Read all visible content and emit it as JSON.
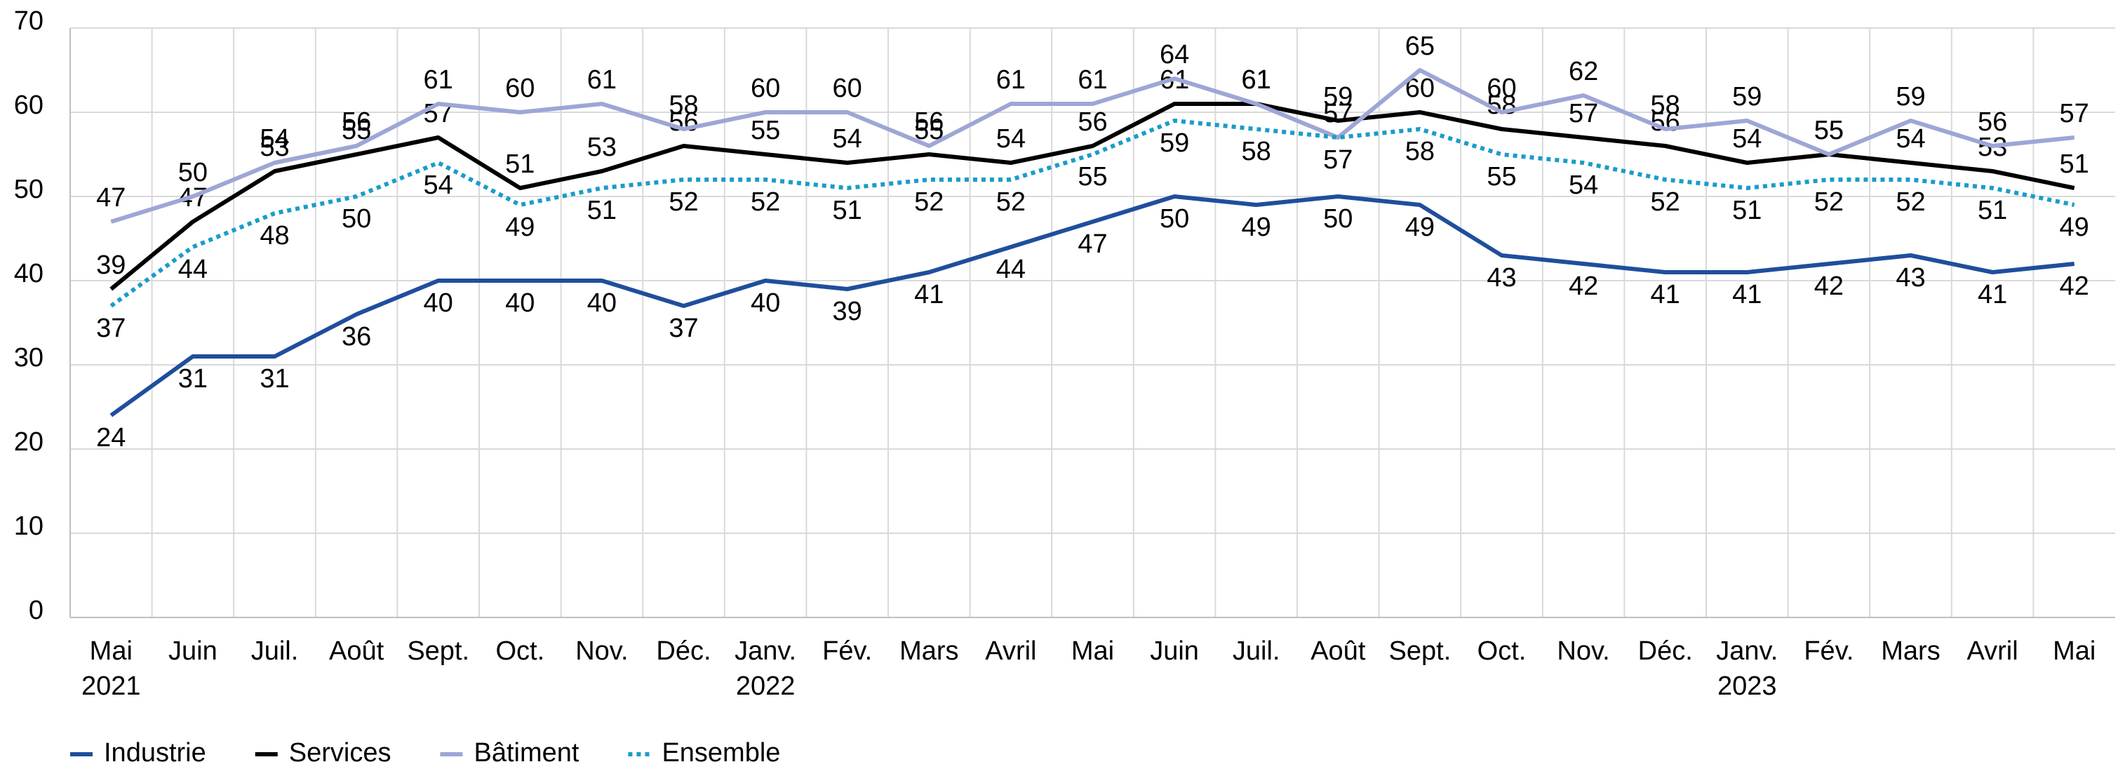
{
  "chart_data": {
    "type": "line",
    "categories": [
      "Mai 2021",
      "Juin",
      "Juil.",
      "Août",
      "Sept.",
      "Oct.",
      "Nov.",
      "Déc.",
      "Janv. 2022",
      "Fév.",
      "Mars",
      "Avril",
      "Mai",
      "Juin",
      "Juil.",
      "Août",
      "Sept.",
      "Oct.",
      "Nov.",
      "Déc.",
      "Janv. 2023",
      "Fév.",
      "Mars",
      "Avril",
      "Mai"
    ],
    "series": [
      {
        "name": "Industrie",
        "color": "#1f4e9c",
        "dash": false,
        "label_side": "below",
        "values": [
          24,
          31,
          31,
          36,
          40,
          40,
          40,
          37,
          40,
          39,
          41,
          44,
          47,
          50,
          49,
          50,
          49,
          43,
          42,
          41,
          41,
          42,
          43,
          41,
          42
        ]
      },
      {
        "name": "Services",
        "color": "#000000",
        "dash": false,
        "label_side": "above",
        "values": [
          39,
          47,
          53,
          55,
          57,
          51,
          53,
          56,
          55,
          54,
          55,
          54,
          56,
          61,
          61,
          59,
          60,
          58,
          57,
          56,
          54,
          55,
          54,
          53,
          51
        ]
      },
      {
        "name": "Bâtiment",
        "color": "#9ea6d6",
        "dash": false,
        "label_side": "above",
        "values": [
          47,
          50,
          54,
          56,
          61,
          60,
          61,
          58,
          60,
          60,
          56,
          61,
          61,
          64,
          61,
          57,
          65,
          60,
          62,
          58,
          59,
          55,
          59,
          56,
          57
        ]
      },
      {
        "name": "Ensemble",
        "color": "#1a9cc9",
        "dash": true,
        "label_side": "below",
        "values": [
          37,
          44,
          48,
          50,
          54,
          49,
          51,
          52,
          52,
          51,
          52,
          52,
          55,
          59,
          58,
          57,
          58,
          55,
          54,
          52,
          51,
          52,
          52,
          51,
          49
        ]
      }
    ],
    "ylim": [
      0,
      70
    ],
    "yticks": [
      0,
      10,
      20,
      30,
      40,
      50,
      60,
      70
    ],
    "grid": true
  }
}
